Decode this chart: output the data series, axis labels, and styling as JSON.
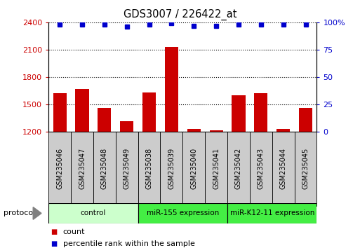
{
  "title": "GDS3007 / 226422_at",
  "samples": [
    "GSM235046",
    "GSM235047",
    "GSM235048",
    "GSM235049",
    "GSM235038",
    "GSM235039",
    "GSM235040",
    "GSM235041",
    "GSM235042",
    "GSM235043",
    "GSM235044",
    "GSM235045"
  ],
  "counts": [
    1620,
    1670,
    1460,
    1310,
    1630,
    2130,
    1230,
    1215,
    1600,
    1620,
    1230,
    1460
  ],
  "percentile_ranks": [
    98,
    98,
    98,
    96,
    98,
    99,
    97,
    97,
    98,
    98,
    98,
    98
  ],
  "groups": [
    {
      "label": "control",
      "start": 0,
      "end": 4,
      "color": "#ccffcc"
    },
    {
      "label": "miR-155 expression",
      "start": 4,
      "end": 8,
      "color": "#44ee44"
    },
    {
      "label": "miR-K12-11 expression",
      "start": 8,
      "end": 12,
      "color": "#44ee44"
    }
  ],
  "ylim_left": [
    1200,
    2400
  ],
  "ylim_right": [
    0,
    100
  ],
  "yticks_left": [
    1200,
    1500,
    1800,
    2100,
    2400
  ],
  "yticks_right": [
    0,
    25,
    50,
    75,
    100
  ],
  "bar_color": "#cc0000",
  "dot_color": "#0000cc",
  "background_color": "#ffffff",
  "grid_color": "#000000",
  "sample_box_color": "#cccccc",
  "legend_items": [
    {
      "label": "count",
      "color": "#cc0000"
    },
    {
      "label": "percentile rank within the sample",
      "color": "#0000cc"
    }
  ]
}
